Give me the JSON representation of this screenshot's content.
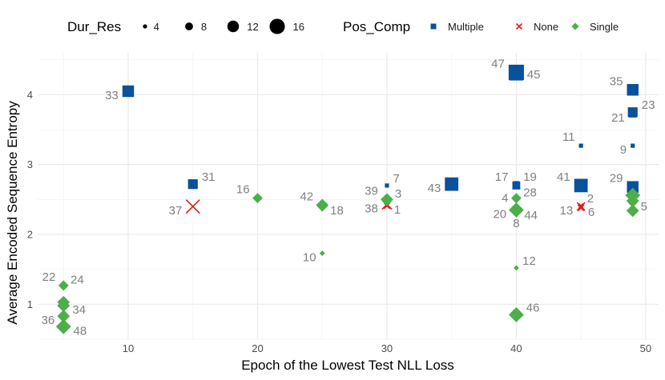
{
  "chart_data": {
    "type": "scatter",
    "xlabel": "Epoch of the Lowest Test NLL Loss",
    "ylabel": "Average Encoded Sequence Entropy",
    "xlim": [
      3,
      51
    ],
    "ylim": [
      0.5,
      4.6
    ],
    "x_ticks": [
      10,
      20,
      30,
      40,
      50
    ],
    "y_ticks": [
      1,
      2,
      3,
      4
    ],
    "grid": true,
    "legend_position": "top",
    "size_legend": {
      "title": "Dur_Res",
      "values": [
        4,
        8,
        12,
        16
      ]
    },
    "shape_legend": {
      "title": "Pos_Comp",
      "categories": [
        {
          "name": "Multiple",
          "shape": "square",
          "color": "#08519c"
        },
        {
          "name": "None",
          "shape": "cross",
          "color": "#e41a1c"
        },
        {
          "name": "Single",
          "shape": "diamond",
          "color": "#4daf4a"
        }
      ]
    },
    "points": [
      {
        "label": "33",
        "x": 10,
        "y": 4.05,
        "size": 12,
        "group": "Multiple"
      },
      {
        "label": "47",
        "x": 40,
        "y": 4.32,
        "size": 16,
        "group": "Multiple"
      },
      {
        "label": "45",
        "x": 40,
        "y": 4.3,
        "size": 14,
        "group": "Multiple"
      },
      {
        "label": "35",
        "x": 49,
        "y": 4.07,
        "size": 12,
        "group": "Multiple"
      },
      {
        "label": "23",
        "x": 49,
        "y": 3.75,
        "size": 10,
        "group": "Multiple"
      },
      {
        "label": "21",
        "x": 49,
        "y": 3.73,
        "size": 8,
        "group": "Multiple"
      },
      {
        "label": "11",
        "x": 45,
        "y": 3.27,
        "size": 4,
        "group": "Multiple"
      },
      {
        "label": "9",
        "x": 49,
        "y": 3.27,
        "size": 4,
        "group": "Multiple"
      },
      {
        "label": "31",
        "x": 15,
        "y": 2.72,
        "size": 10,
        "group": "Multiple"
      },
      {
        "label": "7",
        "x": 30,
        "y": 2.7,
        "size": 4,
        "group": "Multiple"
      },
      {
        "label": "43",
        "x": 35,
        "y": 2.72,
        "size": 14,
        "group": "Multiple"
      },
      {
        "label": "17",
        "x": 40,
        "y": 2.7,
        "size": 8,
        "group": "Multiple"
      },
      {
        "label": "19",
        "x": 40,
        "y": 2.72,
        "size": 6,
        "group": "Multiple"
      },
      {
        "label": "41",
        "x": 45,
        "y": 2.7,
        "size": 14,
        "group": "Multiple"
      },
      {
        "label": "29",
        "x": 49,
        "y": 2.68,
        "size": 12,
        "group": "Multiple"
      },
      {
        "label": "37",
        "x": 15,
        "y": 2.4,
        "size": 14,
        "group": "None"
      },
      {
        "label": "38",
        "x": 30,
        "y": 2.43,
        "size": 10,
        "group": "None"
      },
      {
        "label": "1",
        "x": 30,
        "y": 2.41,
        "size": 6,
        "group": "None"
      },
      {
        "label": "13",
        "x": 45,
        "y": 2.4,
        "size": 8,
        "group": "None"
      },
      {
        "label": "6",
        "x": 45,
        "y": 2.38,
        "size": 6,
        "group": "None"
      },
      {
        "label": "2",
        "x": 45,
        "y": 2.41,
        "size": 4,
        "group": "None"
      },
      {
        "label": "5",
        "x": 49,
        "y": 2.4,
        "size": 8,
        "group": "None"
      },
      {
        "label": "16",
        "x": 20,
        "y": 2.52,
        "size": 8,
        "group": "Single"
      },
      {
        "label": "42",
        "x": 25,
        "y": 2.42,
        "size": 10,
        "group": "Single"
      },
      {
        "label": "18",
        "x": 25,
        "y": 2.4,
        "size": 8,
        "group": "Single"
      },
      {
        "label": "39",
        "x": 30,
        "y": 2.5,
        "size": 10,
        "group": "Single"
      },
      {
        "label": "3",
        "x": 30,
        "y": 2.48,
        "size": 8,
        "group": "Single"
      },
      {
        "label": "4",
        "x": 40,
        "y": 2.52,
        "size": 8,
        "group": "Single"
      },
      {
        "label": "28",
        "x": 40,
        "y": 2.5,
        "size": 6,
        "group": "Single"
      },
      {
        "label": "20",
        "x": 40,
        "y": 2.35,
        "size": 12,
        "group": "Single"
      },
      {
        "label": "44",
        "x": 40,
        "y": 2.33,
        "size": 8,
        "group": "Single"
      },
      {
        "label": "8",
        "x": 40,
        "y": 2.3,
        "size": 4,
        "group": "Single"
      },
      {
        "label": "",
        "x": 49,
        "y": 2.56,
        "size": 12,
        "group": "Single"
      },
      {
        "label": "",
        "x": 49,
        "y": 2.48,
        "size": 10,
        "group": "Single"
      },
      {
        "label": "",
        "x": 49,
        "y": 2.34,
        "size": 10,
        "group": "Single"
      },
      {
        "label": "10",
        "x": 25,
        "y": 1.73,
        "size": 4,
        "group": "Single"
      },
      {
        "label": "12",
        "x": 40,
        "y": 1.52,
        "size": 4,
        "group": "Single"
      },
      {
        "label": "46",
        "x": 40,
        "y": 0.85,
        "size": 12,
        "group": "Single"
      },
      {
        "label": "22",
        "x": 5,
        "y": 1.27,
        "size": 8,
        "group": "Single"
      },
      {
        "label": "24",
        "x": 5,
        "y": 1.25,
        "size": 6,
        "group": "Single"
      },
      {
        "label": "",
        "x": 5,
        "y": 1.03,
        "size": 10,
        "group": "Single"
      },
      {
        "label": "34",
        "x": 5,
        "y": 0.98,
        "size": 10,
        "group": "Single"
      },
      {
        "label": "36",
        "x": 5,
        "y": 0.83,
        "size": 10,
        "group": "Single"
      },
      {
        "label": "48",
        "x": 5,
        "y": 0.68,
        "size": 12,
        "group": "Single"
      }
    ]
  }
}
